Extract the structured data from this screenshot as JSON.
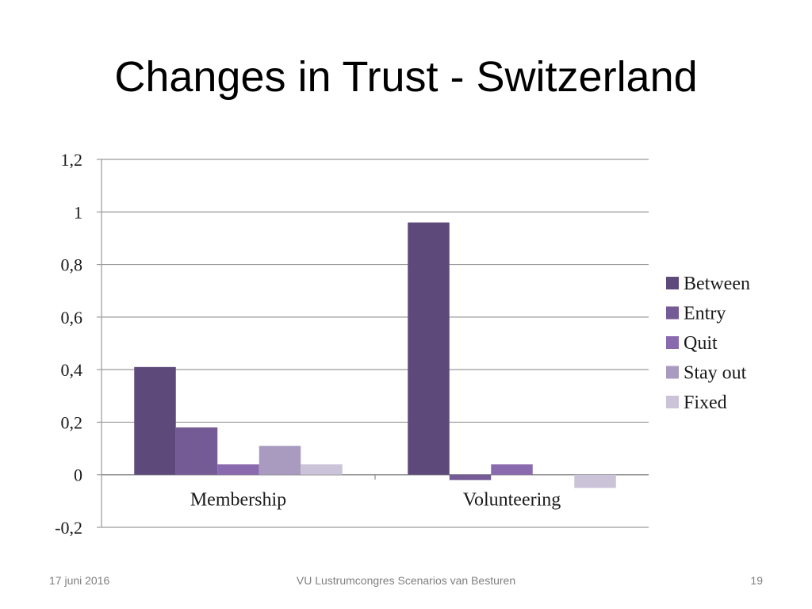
{
  "slide": {
    "title": "Changes in Trust - Switzerland"
  },
  "footer": {
    "date": "17 juni 2016",
    "center": "VU Lustrumcongres Scenarios van Besturen",
    "page": "19"
  },
  "chart_data": {
    "type": "bar",
    "categories": [
      "Membership",
      "Volunteering"
    ],
    "series": [
      {
        "name": "Between",
        "values": [
          0.41,
          0.96
        ],
        "color": "#5e4a7a"
      },
      {
        "name": "Entry",
        "values": [
          0.18,
          -0.02
        ],
        "color": "#755b96"
      },
      {
        "name": "Quit",
        "values": [
          0.04,
          0.04
        ],
        "color": "#8a6aae"
      },
      {
        "name": "Stay out",
        "values": [
          0.11,
          0.0
        ],
        "color": "#a99bbf"
      },
      {
        "name": "Fixed",
        "values": [
          0.04,
          -0.05
        ],
        "color": "#cbc3d7"
      }
    ],
    "ylim": [
      -0.2,
      1.2
    ],
    "yticks": [
      "1,2",
      "1",
      "0,8",
      "0,6",
      "0,4",
      "0,2",
      "0",
      "-0,2"
    ],
    "ytick_values": [
      1.2,
      1.0,
      0.8,
      0.6,
      0.4,
      0.2,
      0.0,
      -0.2
    ],
    "xlabel": "",
    "ylabel": "",
    "grid": true,
    "legend_position": "right"
  }
}
